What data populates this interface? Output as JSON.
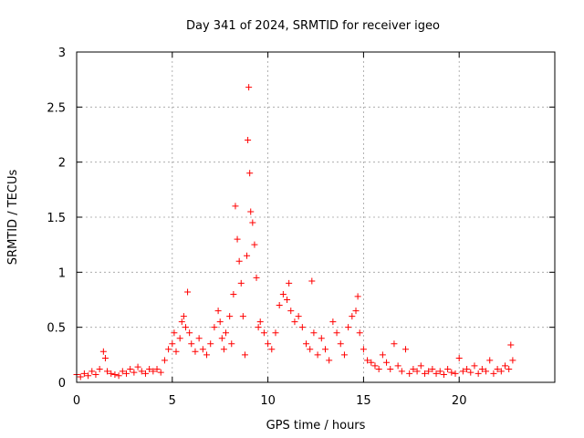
{
  "chart_data": {
    "type": "scatter",
    "title": "Day 341 of 2024, SRMTID for receiver igeo",
    "xlabel": "GPS time / hours",
    "ylabel": "SRMTID / TECUs",
    "xlim": [
      0,
      25
    ],
    "ylim": [
      0,
      3
    ],
    "xticks": [
      0,
      5,
      10,
      15,
      20
    ],
    "xtick_labels": [
      "0",
      "5",
      "10",
      "15",
      "20"
    ],
    "yticks": [
      0,
      0.5,
      1,
      1.5,
      2,
      2.5,
      3
    ],
    "ytick_labels": [
      "0",
      "0.5",
      "1",
      "1.5",
      "2",
      "2.5",
      "3"
    ],
    "grid": true,
    "marker": "+",
    "color": "#ff0000",
    "series": [
      {
        "name": "SRMTID",
        "x": [
          0.0,
          0.2,
          0.4,
          0.6,
          0.8,
          1.0,
          1.2,
          1.4,
          1.5,
          1.6,
          1.8,
          2.0,
          2.2,
          2.4,
          2.6,
          2.8,
          3.0,
          3.2,
          3.4,
          3.6,
          3.8,
          4.0,
          4.2,
          4.4,
          4.6,
          4.8,
          5.0,
          5.1,
          5.2,
          5.4,
          5.5,
          5.6,
          5.7,
          5.8,
          5.9,
          6.0,
          6.2,
          6.4,
          6.6,
          6.8,
          7.0,
          7.2,
          7.4,
          7.5,
          7.6,
          7.7,
          7.8,
          8.0,
          8.1,
          8.2,
          8.3,
          8.4,
          8.5,
          8.6,
          8.7,
          8.8,
          8.9,
          8.95,
          9.0,
          9.05,
          9.1,
          9.2,
          9.3,
          9.4,
          9.5,
          9.6,
          9.8,
          10.0,
          10.2,
          10.4,
          10.6,
          10.8,
          11.0,
          11.1,
          11.2,
          11.4,
          11.6,
          11.8,
          12.0,
          12.2,
          12.3,
          12.4,
          12.6,
          12.8,
          13.0,
          13.2,
          13.4,
          13.6,
          13.8,
          14.0,
          14.2,
          14.4,
          14.6,
          14.7,
          14.8,
          15.0,
          15.2,
          15.4,
          15.6,
          15.8,
          16.0,
          16.2,
          16.4,
          16.6,
          16.8,
          17.0,
          17.2,
          17.4,
          17.6,
          17.8,
          18.0,
          18.2,
          18.4,
          18.6,
          18.8,
          19.0,
          19.2,
          19.4,
          19.6,
          19.8,
          20.0,
          20.2,
          20.4,
          20.6,
          20.8,
          21.0,
          21.2,
          21.4,
          21.6,
          21.8,
          22.0,
          22.2,
          22.4,
          22.6,
          22.7,
          22.8
        ],
        "y": [
          0.07,
          0.05,
          0.08,
          0.06,
          0.1,
          0.07,
          0.12,
          0.28,
          0.22,
          0.1,
          0.08,
          0.07,
          0.06,
          0.1,
          0.08,
          0.12,
          0.09,
          0.14,
          0.1,
          0.08,
          0.12,
          0.1,
          0.12,
          0.09,
          0.2,
          0.3,
          0.35,
          0.45,
          0.28,
          0.4,
          0.55,
          0.6,
          0.5,
          0.82,
          0.45,
          0.35,
          0.28,
          0.4,
          0.3,
          0.25,
          0.35,
          0.5,
          0.65,
          0.55,
          0.4,
          0.3,
          0.45,
          0.6,
          0.35,
          0.8,
          1.6,
          1.3,
          1.1,
          0.9,
          0.6,
          0.25,
          1.15,
          2.2,
          2.68,
          1.9,
          1.55,
          1.45,
          1.25,
          0.95,
          0.5,
          0.55,
          0.45,
          0.35,
          0.3,
          0.45,
          0.7,
          0.8,
          0.75,
          0.9,
          0.65,
          0.55,
          0.6,
          0.5,
          0.35,
          0.3,
          0.92,
          0.45,
          0.25,
          0.4,
          0.3,
          0.2,
          0.55,
          0.45,
          0.35,
          0.25,
          0.5,
          0.6,
          0.65,
          0.78,
          0.45,
          0.3,
          0.2,
          0.18,
          0.15,
          0.12,
          0.25,
          0.18,
          0.12,
          0.35,
          0.15,
          0.1,
          0.3,
          0.08,
          0.12,
          0.1,
          0.15,
          0.08,
          0.1,
          0.12,
          0.08,
          0.1,
          0.07,
          0.12,
          0.09,
          0.08,
          0.22,
          0.1,
          0.12,
          0.09,
          0.15,
          0.08,
          0.12,
          0.1,
          0.2,
          0.08,
          0.12,
          0.1,
          0.15,
          0.12,
          0.34,
          0.2
        ]
      }
    ]
  }
}
